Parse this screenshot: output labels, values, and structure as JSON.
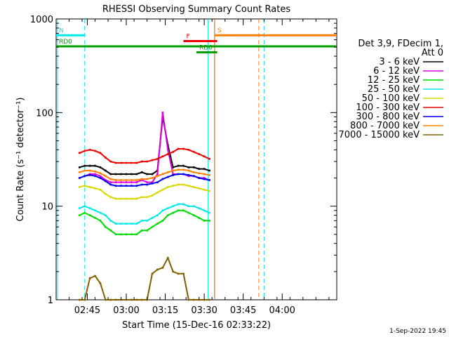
{
  "chart_data": {
    "type": "line",
    "title": "RHESSI Observing Summary Count Rates",
    "xlabel": "Start Time (15-Dec-16 02:33:22)",
    "ylabel": "Count Rate (s⁻¹ detector⁻¹)",
    "yscale": "log",
    "ylim": [
      1,
      1000
    ],
    "xlim_minutes_after_0233": [
      0,
      108
    ],
    "x_tick_labels": [
      "02:45",
      "03:00",
      "03:15",
      "03:30",
      "03:45",
      "04:00"
    ],
    "x_tick_minutes": [
      12,
      27,
      42,
      57,
      72,
      87
    ],
    "y_tick_labels": [
      "1",
      "10",
      "100",
      "1000"
    ],
    "y_tick_values": [
      1,
      10,
      100,
      1000
    ],
    "legend_header": [
      "Det 3,9, FDecim 1,",
      "Att 0"
    ],
    "series": [
      {
        "name": "3 - 6 keV",
        "color": "#000000",
        "values": [
          26,
          27,
          27,
          27,
          26,
          24,
          22,
          22,
          22,
          22,
          22,
          22,
          23,
          22,
          22,
          24,
          90,
          45,
          26,
          27,
          27,
          26,
          26,
          25,
          25,
          24
        ]
      },
      {
        "name": "6 - 12 keV",
        "color": "#e000e0",
        "values": [
          20,
          21,
          22,
          22,
          21,
          19,
          18,
          18,
          18,
          18,
          18,
          18,
          19,
          18,
          18,
          22,
          100,
          40,
          22,
          22,
          22,
          21,
          21,
          20,
          20,
          19
        ]
      },
      {
        "name": "12 - 25 keV",
        "color": "#00dd00",
        "values": [
          8,
          8.5,
          8,
          7.5,
          7,
          6,
          5.5,
          5,
          5,
          5,
          5,
          5,
          5.5,
          5.5,
          6,
          6.5,
          7,
          8,
          8.5,
          9,
          9,
          8.5,
          8,
          7.5,
          7,
          7
        ]
      },
      {
        "name": "25 - 50 keV",
        "color": "#00e8e8",
        "values": [
          9.5,
          10,
          9.5,
          9,
          8.5,
          8,
          7,
          6.5,
          6.5,
          6.5,
          6.5,
          6.5,
          7,
          7,
          7.5,
          8,
          9,
          9.5,
          10,
          10.5,
          10.5,
          10,
          10,
          9.5,
          9,
          8.5
        ]
      },
      {
        "name": "50 - 100 keV",
        "color": "#d8d800",
        "values": [
          16,
          16.5,
          16,
          15.5,
          15,
          13.5,
          12.5,
          12,
          12,
          12,
          12,
          12,
          12.5,
          12.5,
          13,
          14,
          15,
          16,
          16.5,
          17,
          17,
          16.5,
          16,
          15.5,
          15,
          14.5
        ]
      },
      {
        "name": "100 - 300 keV",
        "color": "#ee0000",
        "values": [
          37,
          39,
          40,
          39,
          37,
          33,
          30,
          29,
          29,
          29,
          29,
          29,
          30,
          30,
          31,
          32,
          34,
          36,
          38,
          41,
          41,
          40,
          38,
          36,
          34,
          32
        ]
      },
      {
        "name": "300 - 800 keV",
        "color": "#0000ee",
        "values": [
          20,
          21,
          21.5,
          21,
          20,
          18.5,
          17,
          16.5,
          16.5,
          16.5,
          16.5,
          16.5,
          17,
          17,
          17.5,
          18,
          19.5,
          20.5,
          21.5,
          22,
          22,
          21.5,
          21,
          20,
          19.5,
          19
        ]
      },
      {
        "name": "800 - 7000 keV",
        "color": "#ff8000",
        "values": [
          23,
          24,
          24,
          23.5,
          22.5,
          21,
          19.5,
          19,
          19,
          19,
          19,
          19,
          19.5,
          19.5,
          20,
          21,
          22,
          23,
          24,
          24.5,
          24.5,
          24,
          23,
          22.5,
          22,
          21.5
        ]
      },
      {
        "name": "7000 - 15000 keV",
        "color": "#806000",
        "values": [
          1,
          1,
          1.7,
          1.8,
          1.5,
          1,
          1,
          1,
          1,
          1,
          1,
          1,
          1,
          1,
          1.9,
          2.1,
          2.2,
          2.8,
          2.0,
          1.9,
          1.9,
          1,
          1,
          1,
          1,
          1
        ]
      }
    ],
    "x_minutes": [
      9,
      11,
      13,
      15,
      17,
      19,
      21,
      23,
      25,
      27,
      29,
      31,
      33,
      35,
      37,
      39,
      41,
      43,
      45,
      47,
      49,
      51,
      53,
      55,
      57,
      59
    ],
    "flags": [
      {
        "label": "N",
        "color": "#00e8e8",
        "level": 670,
        "start": 0,
        "end": 11
      },
      {
        "label": "S",
        "color": "#ff8000",
        "level": 670,
        "start": 61,
        "end": 108
      },
      {
        "label": "F",
        "color": "#ee0000",
        "level": 580,
        "start": 49,
        "end": 62
      },
      {
        "label": "RD0",
        "color": "#00a000",
        "level": 510,
        "start": 0,
        "end": 108
      },
      {
        "label": "RD6",
        "color": "#00a000",
        "level": 440,
        "start": 54,
        "end": 62
      }
    ],
    "vertical_markers": [
      {
        "minute": 0.5,
        "color": "#00e8e8",
        "style": "solid"
      },
      {
        "minute": 11,
        "color": "#00e8e8",
        "style": "dashed"
      },
      {
        "minute": 58.5,
        "color": "#00e8e8",
        "style": "solid"
      },
      {
        "minute": 61,
        "color": "#c06000",
        "style": "solid"
      },
      {
        "minute": 78,
        "color": "#ff8000",
        "style": "dashed"
      },
      {
        "minute": 80,
        "color": "#00e8e8",
        "style": "dashed"
      }
    ]
  },
  "footer_timestamp": "1-Sep-2022 19:45"
}
